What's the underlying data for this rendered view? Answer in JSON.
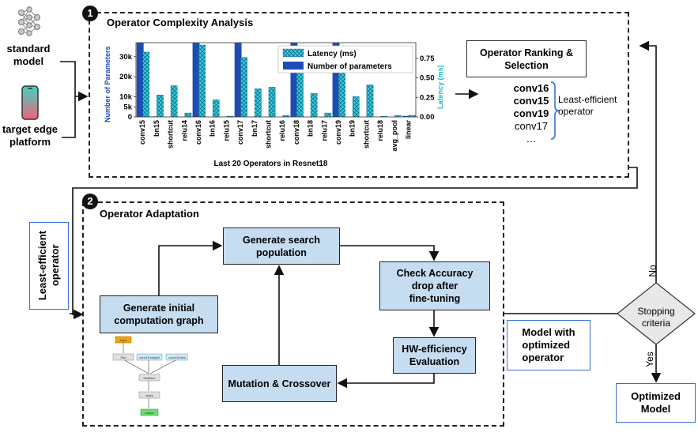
{
  "inputs": {
    "standard_model": "standard\nmodel",
    "target_platform": "target edge\nplatform"
  },
  "section1": {
    "number": "1",
    "title": "Operator Complexity Analysis"
  },
  "section2": {
    "number": "2",
    "title": "Operator Adaptation"
  },
  "chart_data": {
    "type": "bar",
    "title": "",
    "xlabel": "Last 20 Operators in Resnet18",
    "ylabel": "Number of Parameters",
    "ylabel_right": "Latency (ms)",
    "categories": [
      "conv15",
      "bn15",
      "shortcut",
      "relu14",
      "conv16",
      "bn16",
      "relu15",
      "conv17",
      "bn17",
      "shortcut",
      "relu16",
      "conv18",
      "bn18",
      "relu17",
      "conv19",
      "bn19",
      "shortcut",
      "relu18",
      "avg_pool",
      "linear"
    ],
    "y_ticks_left": [
      "0",
      "5k",
      "10k",
      "20k",
      "30k"
    ],
    "y_ticks_right": [
      "0.00",
      "0.25",
      "0.50",
      "0.75"
    ],
    "ylim_left": [
      0,
      37000
    ],
    "ylim_right": [
      0,
      0.95
    ],
    "legend_position": "top-right",
    "series": [
      {
        "name": "Latency (ms)",
        "axis": "right",
        "color": "#38c6e0",
        "pattern": "crosshatch",
        "values": [
          0.83,
          0.28,
          0.4,
          0.05,
          0.92,
          0.22,
          0.01,
          0.76,
          0.36,
          0.38,
          0.02,
          0.72,
          0.3,
          0.05,
          0.64,
          0.26,
          0.41,
          0.01,
          0.02,
          0.02
        ]
      },
      {
        "name": "Number of parameters",
        "axis": "left",
        "color": "#1f4bb5",
        "pattern": "solid",
        "values": [
          36864,
          256,
          0,
          0,
          36864,
          0,
          0,
          36864,
          0,
          0,
          0,
          36864,
          0,
          0,
          36864,
          0,
          0,
          0,
          0,
          500
        ]
      }
    ]
  },
  "ranking": {
    "title": "Operator Ranking &\nSelection",
    "items": [
      "conv16",
      "conv15",
      "conv19",
      "conv17",
      "…"
    ],
    "brace_label": "Least-efficient\noperator"
  },
  "flow": {
    "left_label": "Least-efficient\noperator",
    "generate_initial": "Generate initial\ncomputation graph",
    "generate_population": "Generate search\npopulation",
    "check_accuracy": "Check Accuracy\ndrop after\nfine-tuning",
    "hw_efficiency": "HW-efficiency\nEvaluation",
    "mutation": "Mutation & Crossover",
    "model_optimized": "Model with\noptimized\noperator",
    "stopping": "Stopping\ncriteria",
    "no": "No",
    "yes": "Yes",
    "optimized_model": "Optimized\nModel"
  },
  "mini_graph": {
    "input": "input",
    "pad": "Pad",
    "weight": "conv16.weight",
    "bias": "conv16.bias",
    "op": "MultiAcc",
    "stack": "stack",
    "output": "output"
  }
}
